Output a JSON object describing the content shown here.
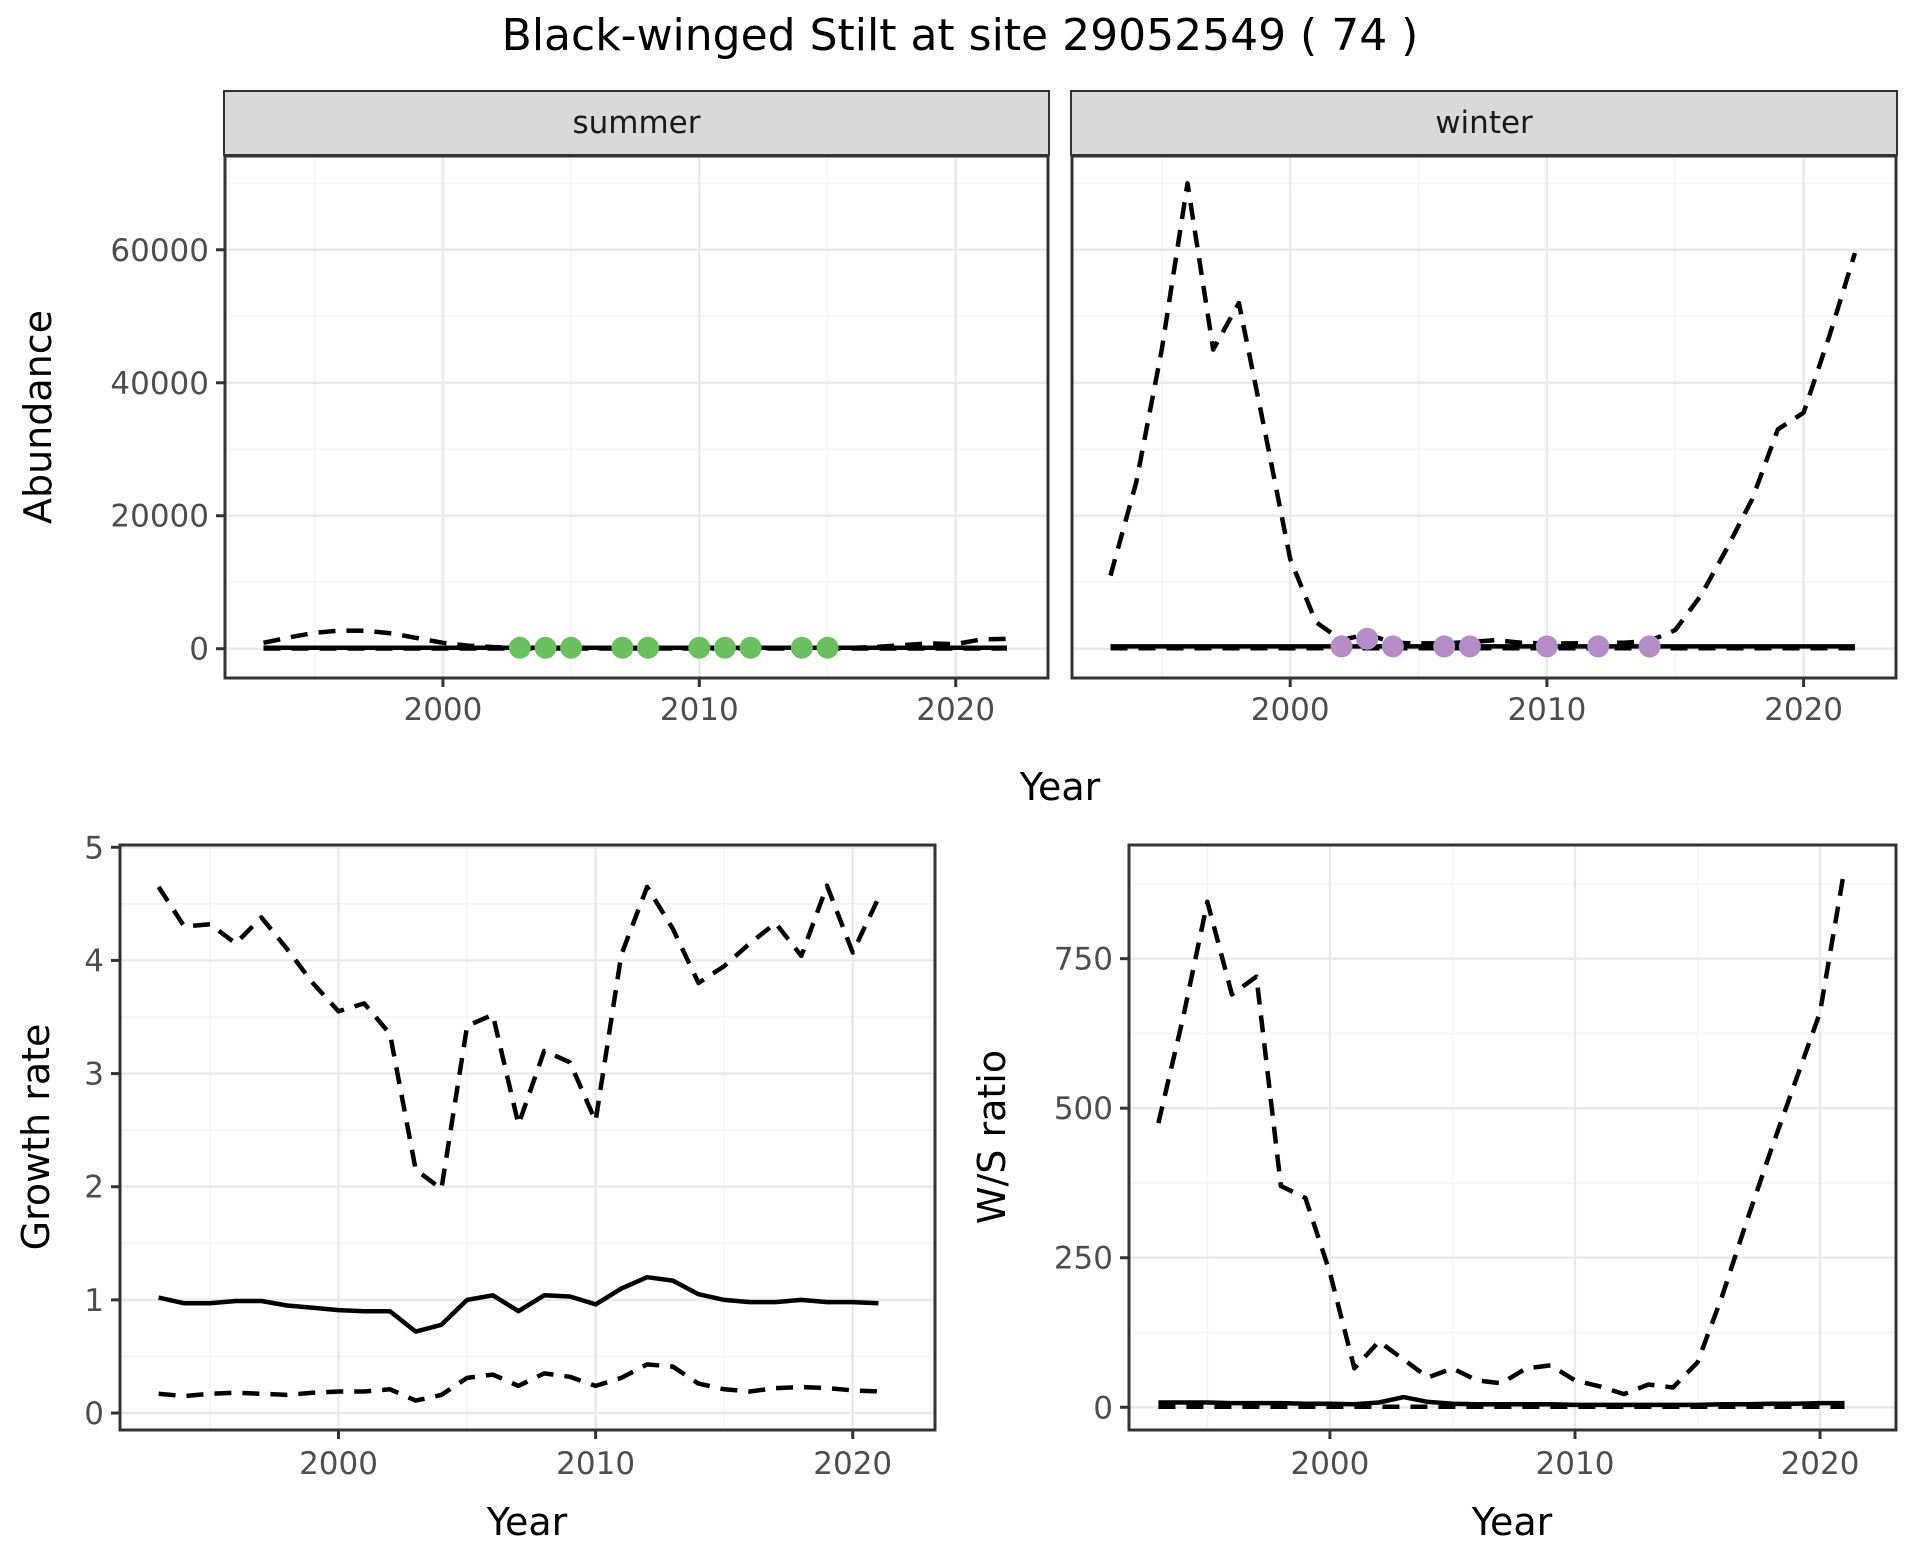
{
  "title": "Black-winged Stilt at site 29052549 ( 74 )",
  "colors": {
    "line": "#000000",
    "summer_point": "#6abf5e",
    "winter_point": "#b48cc8",
    "strip_bg": "#d9d9d9",
    "panel_border": "#333333",
    "grid_major": "#e8e8e8",
    "grid_minor": "#f4f4f4",
    "tick_label": "#4d4d4d"
  },
  "chart_data": [
    {
      "id": "abundance_summer",
      "type": "line",
      "facet_label": "summer",
      "xlabel": "Year",
      "ylabel": "Abundance",
      "xlim": [
        1991.5,
        2023.6
      ],
      "ylim": [
        -4400,
        74100
      ],
      "grid": true,
      "legend": "none",
      "xticks": {
        "values": [
          2000,
          2010,
          2020
        ],
        "labels": [
          "2000",
          "2010",
          "2020"
        ],
        "minor": [
          1995,
          2005,
          2015
        ]
      },
      "yticks": {
        "values": [
          0,
          20000,
          40000,
          60000
        ],
        "labels": [
          "0",
          "20000",
          "40000",
          "60000"
        ],
        "minor": [
          10000,
          30000,
          50000,
          70000
        ]
      },
      "years": [
        1993,
        1994,
        1995,
        1996,
        1997,
        1998,
        1999,
        2000,
        2001,
        2002,
        2003,
        2004,
        2005,
        2006,
        2007,
        2008,
        2009,
        2010,
        2011,
        2012,
        2013,
        2014,
        2015,
        2016,
        2017,
        2018,
        2019,
        2020,
        2021,
        2022
      ],
      "series": [
        {
          "name": "upper_95ci",
          "style": "dashed",
          "values": [
            900,
            1700,
            2400,
            2750,
            2700,
            2300,
            1600,
            900,
            450,
            250,
            120,
            100,
            100,
            100,
            100,
            100,
            100,
            100,
            100,
            100,
            100,
            100,
            100,
            150,
            300,
            550,
            800,
            700,
            1400,
            1500
          ]
        },
        {
          "name": "median",
          "style": "solid",
          "values": [
            150,
            150,
            150,
            150,
            150,
            150,
            150,
            150,
            150,
            150,
            150,
            150,
            150,
            150,
            150,
            150,
            150,
            150,
            150,
            150,
            150,
            150,
            150,
            150,
            150,
            150,
            150,
            150,
            150,
            150
          ]
        },
        {
          "name": "lower_95ci",
          "style": "dashed",
          "values": [
            40,
            40,
            40,
            40,
            40,
            40,
            40,
            40,
            40,
            40,
            40,
            40,
            40,
            40,
            40,
            40,
            40,
            40,
            40,
            40,
            40,
            40,
            40,
            40,
            40,
            40,
            40,
            40,
            40,
            40
          ]
        }
      ],
      "points": {
        "name": "observed_counts",
        "color": "#6abf5e",
        "years": [
          2003,
          2004,
          2005,
          2007,
          2008,
          2010,
          2011,
          2012,
          2014,
          2015
        ],
        "values": [
          150,
          150,
          150,
          150,
          150,
          150,
          150,
          150,
          150,
          150
        ]
      }
    },
    {
      "id": "abundance_winter",
      "type": "line",
      "facet_label": "winter",
      "xlabel": "Year",
      "ylabel": "Abundance",
      "xlim": [
        1991.5,
        2023.6
      ],
      "ylim": [
        -4400,
        74100
      ],
      "grid": true,
      "legend": "none",
      "xticks": {
        "values": [
          2000,
          2010,
          2020
        ],
        "labels": [
          "2000",
          "2010",
          "2020"
        ],
        "minor": [
          1995,
          2005,
          2015
        ]
      },
      "yticks": {
        "values": [
          0,
          20000,
          40000,
          60000
        ],
        "labels": [
          "0",
          "20000",
          "40000",
          "60000"
        ],
        "minor": [
          10000,
          30000,
          50000,
          70000
        ]
      },
      "years": [
        1993,
        1994,
        1995,
        1996,
        1997,
        1998,
        1999,
        2000,
        2001,
        2002,
        2003,
        2004,
        2005,
        2006,
        2007,
        2008,
        2009,
        2010,
        2011,
        2012,
        2013,
        2014,
        2015,
        2016,
        2017,
        2018,
        2019,
        2020,
        2021,
        2022
      ],
      "series": [
        {
          "name": "upper_95ci",
          "style": "dashed",
          "values": [
            11000,
            25000,
            45000,
            70000,
            45000,
            52000,
            33000,
            13500,
            4000,
            1300,
            2200,
            900,
            800,
            800,
            1000,
            1300,
            900,
            800,
            800,
            900,
            900,
            1200,
            2800,
            8000,
            15000,
            22500,
            33000,
            35500,
            47000,
            59500
          ]
        },
        {
          "name": "median",
          "style": "solid",
          "values": [
            350,
            350,
            350,
            350,
            350,
            350,
            350,
            350,
            350,
            350,
            350,
            350,
            350,
            350,
            350,
            350,
            350,
            350,
            350,
            350,
            350,
            350,
            350,
            350,
            350,
            350,
            350,
            350,
            350,
            350
          ]
        },
        {
          "name": "lower_95ci",
          "style": "dashed",
          "values": [
            60,
            60,
            60,
            60,
            60,
            60,
            60,
            60,
            60,
            60,
            60,
            60,
            60,
            60,
            60,
            60,
            60,
            60,
            60,
            60,
            60,
            60,
            60,
            60,
            60,
            60,
            60,
            60,
            60,
            60
          ]
        }
      ],
      "points": {
        "name": "observed_counts",
        "color": "#b48cc8",
        "years": [
          2002,
          2003,
          2004,
          2006,
          2007,
          2010,
          2012,
          2014
        ],
        "values": [
          350,
          1500,
          350,
          350,
          350,
          350,
          350,
          350
        ]
      }
    },
    {
      "id": "growth_rate",
      "type": "line",
      "facet_label": "",
      "xlabel": "Year",
      "ylabel": "Growth rate",
      "xlim": [
        1991.5,
        2023.2
      ],
      "ylim": [
        -0.15,
        5.02
      ],
      "grid": true,
      "legend": "none",
      "xticks": {
        "values": [
          2000,
          2010,
          2020
        ],
        "labels": [
          "2000",
          "2010",
          "2020"
        ],
        "minor": [
          1995,
          2005,
          2015
        ]
      },
      "yticks": {
        "values": [
          0,
          1,
          2,
          3,
          4,
          5
        ],
        "labels": [
          "0",
          "1",
          "2",
          "3",
          "4",
          "5"
        ],
        "minor": [
          0.5,
          1.5,
          2.5,
          3.5,
          4.5
        ]
      },
      "years": [
        1993,
        1994,
        1995,
        1996,
        1997,
        1998,
        1999,
        2000,
        2001,
        2002,
        2003,
        2004,
        2005,
        2006,
        2007,
        2008,
        2009,
        2010,
        2011,
        2012,
        2013,
        2014,
        2015,
        2016,
        2017,
        2018,
        2019,
        2020,
        2021
      ],
      "series": [
        {
          "name": "upper_95ci",
          "style": "dashed",
          "values": [
            4.65,
            4.3,
            4.32,
            4.15,
            4.38,
            4.1,
            3.8,
            3.55,
            3.62,
            3.35,
            2.15,
            1.98,
            3.42,
            3.52,
            2.55,
            3.2,
            3.1,
            2.58,
            4.05,
            4.65,
            4.28,
            3.8,
            3.95,
            4.15,
            4.33,
            4.04,
            4.66,
            4.07,
            4.55
          ]
        },
        {
          "name": "median",
          "style": "solid",
          "values": [
            1.02,
            0.97,
            0.97,
            0.99,
            0.99,
            0.95,
            0.93,
            0.91,
            0.9,
            0.9,
            0.72,
            0.78,
            1.0,
            1.04,
            0.9,
            1.04,
            1.03,
            0.96,
            1.1,
            1.2,
            1.17,
            1.05,
            1.0,
            0.98,
            0.98,
            1.0,
            0.98,
            0.98,
            0.97
          ]
        },
        {
          "name": "lower_95ci",
          "style": "dashed",
          "values": [
            0.17,
            0.15,
            0.17,
            0.18,
            0.17,
            0.16,
            0.18,
            0.19,
            0.19,
            0.21,
            0.11,
            0.16,
            0.31,
            0.34,
            0.24,
            0.35,
            0.32,
            0.24,
            0.31,
            0.43,
            0.41,
            0.26,
            0.21,
            0.19,
            0.22,
            0.23,
            0.22,
            0.2,
            0.19
          ]
        }
      ],
      "points": null
    },
    {
      "id": "ws_ratio",
      "type": "line",
      "facet_label": "",
      "xlabel": "Year",
      "ylabel": "W/S ratio",
      "xlim": [
        1991.8,
        2023.1
      ],
      "ylim": [
        -38,
        940
      ],
      "grid": true,
      "legend": "none",
      "xticks": {
        "values": [
          2000,
          2010,
          2020
        ],
        "labels": [
          "2000",
          "2010",
          "2020"
        ],
        "minor": [
          1995,
          2005,
          2015
        ]
      },
      "yticks": {
        "values": [
          0,
          250,
          500,
          750
        ],
        "labels": [
          "0",
          "250",
          "500",
          "750"
        ],
        "minor": [
          125,
          375,
          625,
          875
        ]
      },
      "years": [
        1993,
        1994,
        1995,
        1996,
        1997,
        1998,
        1999,
        2000,
        2001,
        2002,
        2003,
        2004,
        2005,
        2006,
        2007,
        2008,
        2009,
        2010,
        2011,
        2012,
        2013,
        2014,
        2015,
        2016,
        2017,
        2018,
        2019,
        2020,
        2021
      ],
      "series": [
        {
          "name": "upper_95ci",
          "style": "dashed",
          "values": [
            475,
            650,
            845,
            690,
            720,
            370,
            350,
            225,
            65,
            110,
            80,
            50,
            65,
            45,
            40,
            65,
            70,
            45,
            35,
            22,
            38,
            33,
            75,
            185,
            310,
            430,
            545,
            660,
            900
          ]
        },
        {
          "name": "median",
          "style": "solid",
          "values": [
            8,
            8,
            8,
            7,
            7,
            7,
            6,
            6,
            5,
            8,
            17,
            9,
            6,
            5,
            5,
            5,
            5,
            4,
            4,
            4,
            4,
            4,
            4,
            5,
            5,
            6,
            6,
            7,
            7
          ]
        },
        {
          "name": "lower_95ci",
          "style": "dashed",
          "values": [
            1,
            1,
            1,
            1,
            1,
            1,
            1,
            1,
            1,
            1,
            1,
            1,
            1,
            1,
            1,
            1,
            1,
            1,
            1,
            1,
            1,
            1,
            1,
            1,
            1,
            1,
            1,
            1,
            1
          ]
        }
      ],
      "points": null
    }
  ]
}
